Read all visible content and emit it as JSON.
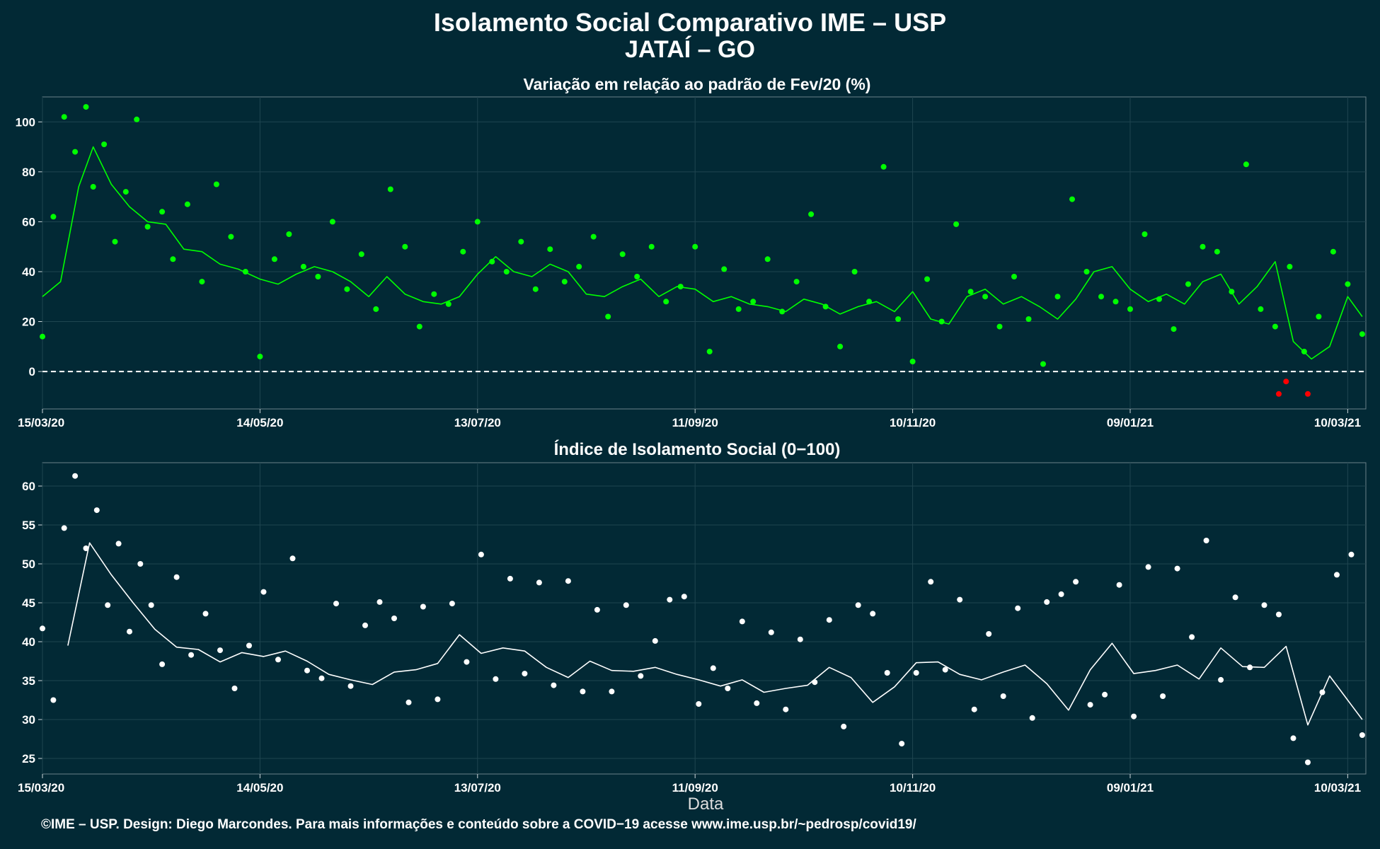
{
  "header": {
    "title": "Isolamento Social Comparativo IME – USP",
    "subtitle": "JATAÍ – GO"
  },
  "footer": {
    "credit": "©IME – USP. Design: Diego Marcondes. Para mais informações e conteúdo sobre a COVID−19 acesse www.ime.usp.br/~pedrosp/covid19/"
  },
  "colors": {
    "background": "#022935",
    "grid": "#1f4550",
    "top_series": "#00ff00",
    "negative_points": "#ff0000",
    "bottom_series": "#ffffff"
  },
  "chart_data": [
    {
      "type": "scatter",
      "title": "Variação em relação ao padrão de Fev/20 (%)",
      "xlabel": "",
      "ylabel": "",
      "x_range": [
        "2020-03-15",
        "2021-03-15"
      ],
      "ylim": [
        -15,
        110
      ],
      "yticks": [
        0,
        20,
        40,
        60,
        80,
        100
      ],
      "xtick_labels": [
        "15/03/20",
        "14/05/20",
        "13/07/20",
        "11/09/20",
        "10/11/20",
        "09/01/21",
        "10/03/21"
      ],
      "reference_line": 0,
      "grid": true,
      "series": [
        {
          "kind": "points",
          "x": [
            "2020-03-15",
            "2020-03-18",
            "2020-03-21",
            "2020-03-24",
            "2020-03-27",
            "2020-03-29",
            "2020-04-01",
            "2020-04-04",
            "2020-04-07",
            "2020-04-10",
            "2020-04-13",
            "2020-04-17",
            "2020-04-20",
            "2020-04-24",
            "2020-04-28",
            "2020-05-02",
            "2020-05-06",
            "2020-05-10",
            "2020-05-14",
            "2020-05-18",
            "2020-05-22",
            "2020-05-26",
            "2020-05-30",
            "2020-06-03",
            "2020-06-07",
            "2020-06-11",
            "2020-06-15",
            "2020-06-19",
            "2020-06-23",
            "2020-06-27",
            "2020-07-01",
            "2020-07-05",
            "2020-07-09",
            "2020-07-13",
            "2020-07-17",
            "2020-07-21",
            "2020-07-25",
            "2020-07-29",
            "2020-08-02",
            "2020-08-06",
            "2020-08-10",
            "2020-08-14",
            "2020-08-18",
            "2020-08-22",
            "2020-08-26",
            "2020-08-30",
            "2020-09-03",
            "2020-09-07",
            "2020-09-11",
            "2020-09-15",
            "2020-09-19",
            "2020-09-23",
            "2020-09-27",
            "2020-10-01",
            "2020-10-05",
            "2020-10-09",
            "2020-10-13",
            "2020-10-17",
            "2020-10-21",
            "2020-10-25",
            "2020-10-29",
            "2020-11-02",
            "2020-11-06",
            "2020-11-10",
            "2020-11-14",
            "2020-11-18",
            "2020-11-22",
            "2020-11-26",
            "2020-11-30",
            "2020-12-04",
            "2020-12-08",
            "2020-12-12",
            "2020-12-16",
            "2020-12-20",
            "2020-12-24",
            "2020-12-28",
            "2021-01-01",
            "2021-01-05",
            "2021-01-09",
            "2021-01-13",
            "2021-01-17",
            "2021-01-21",
            "2021-01-25",
            "2021-01-29",
            "2021-02-02",
            "2021-02-06",
            "2021-02-10",
            "2021-02-14",
            "2021-02-18",
            "2021-02-22",
            "2021-02-26",
            "2021-03-02",
            "2021-03-06",
            "2021-03-10",
            "2021-03-14"
          ],
          "y": [
            14,
            62,
            102,
            88,
            106,
            74,
            91,
            52,
            72,
            101,
            58,
            64,
            45,
            67,
            36,
            75,
            54,
            40,
            6,
            45,
            55,
            42,
            38,
            60,
            33,
            47,
            25,
            73,
            50,
            18,
            31,
            27,
            48,
            60,
            44,
            40,
            52,
            33,
            49,
            36,
            42,
            54,
            22,
            47,
            38,
            50,
            28,
            34,
            50,
            8,
            41,
            25,
            28,
            45,
            24,
            36,
            63,
            26,
            10,
            40,
            28,
            82,
            21,
            4,
            37,
            20,
            59,
            32,
            30,
            18,
            38,
            21,
            3,
            30,
            69,
            40,
            30,
            28,
            25,
            55,
            29,
            17,
            35,
            50,
            48,
            32,
            83,
            25,
            18,
            42,
            8,
            22,
            48,
            35,
            15
          ]
        },
        {
          "kind": "points",
          "name": "",
          "color_key": "negative_points",
          "x": [
            "2021-02-19",
            "2021-02-21",
            "2021-02-27"
          ],
          "y": [
            -9,
            -4,
            -9
          ]
        },
        {
          "kind": "line",
          "x": [
            "2020-03-15",
            "2020-03-20",
            "2020-03-25",
            "2020-03-29",
            "2020-04-03",
            "2020-04-08",
            "2020-04-13",
            "2020-04-18",
            "2020-04-23",
            "2020-04-28",
            "2020-05-03",
            "2020-05-08",
            "2020-05-14",
            "2020-05-19",
            "2020-05-24",
            "2020-05-29",
            "2020-06-03",
            "2020-06-08",
            "2020-06-13",
            "2020-06-18",
            "2020-06-23",
            "2020-06-28",
            "2020-07-03",
            "2020-07-08",
            "2020-07-13",
            "2020-07-18",
            "2020-07-23",
            "2020-07-28",
            "2020-08-02",
            "2020-08-07",
            "2020-08-12",
            "2020-08-17",
            "2020-08-22",
            "2020-08-27",
            "2020-09-01",
            "2020-09-06",
            "2020-09-11",
            "2020-09-16",
            "2020-09-21",
            "2020-09-26",
            "2020-10-01",
            "2020-10-06",
            "2020-10-11",
            "2020-10-16",
            "2020-10-21",
            "2020-10-26",
            "2020-10-31",
            "2020-11-05",
            "2020-11-10",
            "2020-11-15",
            "2020-11-20",
            "2020-11-25",
            "2020-11-30",
            "2020-12-05",
            "2020-12-10",
            "2020-12-15",
            "2020-12-20",
            "2020-12-25",
            "2020-12-30",
            "2021-01-04",
            "2021-01-09",
            "2021-01-14",
            "2021-01-19",
            "2021-01-24",
            "2021-01-29",
            "2021-02-03",
            "2021-02-08",
            "2021-02-13",
            "2021-02-18",
            "2021-02-23",
            "2021-02-28",
            "2021-03-05",
            "2021-03-10",
            "2021-03-14"
          ],
          "y": [
            30,
            36,
            74,
            90,
            75,
            66,
            60,
            59,
            49,
            48,
            43,
            41,
            37,
            35,
            39,
            42,
            40,
            36,
            30,
            38,
            31,
            28,
            27,
            30,
            39,
            46,
            40,
            38,
            43,
            40,
            31,
            30,
            34,
            37,
            30,
            34,
            33,
            28,
            30,
            27,
            26,
            24,
            29,
            27,
            23,
            26,
            28,
            24,
            32,
            21,
            19,
            30,
            33,
            27,
            30,
            26,
            21,
            29,
            40,
            42,
            33,
            28,
            31,
            27,
            36,
            39,
            27,
            34,
            44,
            12,
            5,
            10,
            30,
            22
          ]
        }
      ]
    },
    {
      "type": "scatter",
      "title": "Índice de Isolamento Social (0−100)",
      "xlabel": "Data",
      "ylabel": "",
      "x_range": [
        "2020-03-15",
        "2021-03-15"
      ],
      "ylim": [
        23,
        63
      ],
      "yticks": [
        25,
        30,
        35,
        40,
        45,
        50,
        55,
        60
      ],
      "xtick_labels": [
        "15/03/20",
        "14/05/20",
        "13/07/20",
        "11/09/20",
        "10/11/20",
        "09/01/21",
        "10/03/21"
      ],
      "grid": true,
      "series": [
        {
          "kind": "points",
          "x": [
            "2020-03-15",
            "2020-03-18",
            "2020-03-21",
            "2020-03-24",
            "2020-03-27",
            "2020-03-30",
            "2020-04-02",
            "2020-04-05",
            "2020-04-08",
            "2020-04-11",
            "2020-04-14",
            "2020-04-17",
            "2020-04-21",
            "2020-04-25",
            "2020-04-29",
            "2020-05-03",
            "2020-05-07",
            "2020-05-11",
            "2020-05-15",
            "2020-05-19",
            "2020-05-23",
            "2020-05-27",
            "2020-05-31",
            "2020-06-04",
            "2020-06-08",
            "2020-06-12",
            "2020-06-16",
            "2020-06-20",
            "2020-06-24",
            "2020-06-28",
            "2020-07-02",
            "2020-07-06",
            "2020-07-10",
            "2020-07-14",
            "2020-07-18",
            "2020-07-22",
            "2020-07-26",
            "2020-07-30",
            "2020-08-03",
            "2020-08-07",
            "2020-08-11",
            "2020-08-15",
            "2020-08-19",
            "2020-08-23",
            "2020-08-27",
            "2020-08-31",
            "2020-09-04",
            "2020-09-08",
            "2020-09-12",
            "2020-09-16",
            "2020-09-20",
            "2020-09-24",
            "2020-09-28",
            "2020-10-02",
            "2020-10-06",
            "2020-10-10",
            "2020-10-14",
            "2020-10-18",
            "2020-10-22",
            "2020-10-26",
            "2020-10-30",
            "2020-11-03",
            "2020-11-07",
            "2020-11-11",
            "2020-11-15",
            "2020-11-19",
            "2020-11-23",
            "2020-11-27",
            "2020-12-01",
            "2020-12-05",
            "2020-12-09",
            "2020-12-13",
            "2020-12-17",
            "2020-12-21",
            "2020-12-25",
            "2020-12-29",
            "2021-01-02",
            "2021-01-06",
            "2021-01-10",
            "2021-01-14",
            "2021-01-18",
            "2021-01-22",
            "2021-01-26",
            "2021-01-30",
            "2021-02-03",
            "2021-02-07",
            "2021-02-11",
            "2021-02-15",
            "2021-02-19",
            "2021-02-23",
            "2021-02-27",
            "2021-03-03",
            "2021-03-07",
            "2021-03-11",
            "2021-03-14"
          ],
          "y": [
            41.7,
            32.5,
            54.6,
            61.3,
            52.0,
            56.9,
            44.7,
            52.6,
            41.3,
            50.0,
            44.7,
            37.1,
            48.3,
            38.3,
            43.6,
            38.9,
            34.0,
            39.5,
            46.4,
            37.7,
            50.7,
            36.3,
            35.3,
            44.9,
            34.3,
            42.1,
            45.1,
            43.0,
            32.2,
            44.5,
            32.6,
            44.9,
            37.4,
            51.2,
            35.2,
            48.1,
            35.9,
            47.6,
            34.4,
            47.8,
            33.6,
            44.1,
            33.6,
            44.7,
            35.6,
            40.1,
            45.4,
            45.8,
            32.0,
            36.6,
            34.0,
            42.6,
            32.1,
            41.2,
            31.3,
            40.3,
            34.8,
            42.8,
            29.1,
            44.7,
            43.6,
            36.0,
            26.9,
            36.0,
            47.7,
            36.4,
            45.4,
            31.3,
            41.0,
            33.0,
            44.3,
            30.2,
            45.1,
            46.1,
            47.7,
            31.9,
            33.2,
            47.3,
            30.4,
            49.6,
            33.0,
            49.4,
            40.6,
            53.0,
            35.1,
            45.7,
            36.7,
            44.7,
            43.5,
            27.6,
            24.5,
            33.5,
            48.6,
            51.2,
            28.0
          ]
        },
        {
          "kind": "line",
          "x": [
            "2020-03-22",
            "2020-03-28",
            "2020-04-03",
            "2020-04-09",
            "2020-04-15",
            "2020-04-21",
            "2020-04-27",
            "2020-05-03",
            "2020-05-09",
            "2020-05-15",
            "2020-05-21",
            "2020-05-27",
            "2020-06-02",
            "2020-06-08",
            "2020-06-14",
            "2020-06-20",
            "2020-06-26",
            "2020-07-02",
            "2020-07-08",
            "2020-07-14",
            "2020-07-20",
            "2020-07-26",
            "2020-08-01",
            "2020-08-07",
            "2020-08-13",
            "2020-08-19",
            "2020-08-25",
            "2020-08-31",
            "2020-09-06",
            "2020-09-12",
            "2020-09-18",
            "2020-09-24",
            "2020-09-30",
            "2020-10-06",
            "2020-10-12",
            "2020-10-18",
            "2020-10-24",
            "2020-10-30",
            "2020-11-05",
            "2020-11-11",
            "2020-11-17",
            "2020-11-23",
            "2020-11-29",
            "2020-12-05",
            "2020-12-11",
            "2020-12-17",
            "2020-12-23",
            "2020-12-29",
            "2021-01-04",
            "2021-01-10",
            "2021-01-16",
            "2021-01-22",
            "2021-01-28",
            "2021-02-03",
            "2021-02-09",
            "2021-02-15",
            "2021-02-21",
            "2021-02-27",
            "2021-03-05",
            "2021-03-14"
          ],
          "y": [
            39.5,
            52.7,
            48.6,
            45.0,
            41.6,
            39.3,
            39.0,
            37.4,
            38.6,
            38.1,
            38.8,
            37.5,
            35.8,
            35.1,
            34.5,
            36.1,
            36.4,
            37.2,
            40.9,
            38.5,
            39.2,
            38.8,
            36.7,
            35.4,
            37.5,
            36.3,
            36.2,
            36.7,
            35.8,
            35.1,
            34.3,
            35.1,
            33.5,
            34.0,
            34.4,
            36.7,
            35.4,
            32.2,
            34.2,
            37.3,
            37.4,
            35.8,
            35.1,
            36.1,
            37.0,
            34.6,
            31.2,
            36.4,
            39.8,
            35.9,
            36.3,
            37.0,
            35.2,
            39.2,
            36.8,
            36.7,
            39.4,
            29.3,
            35.6,
            30.0
          ]
        }
      ]
    }
  ]
}
